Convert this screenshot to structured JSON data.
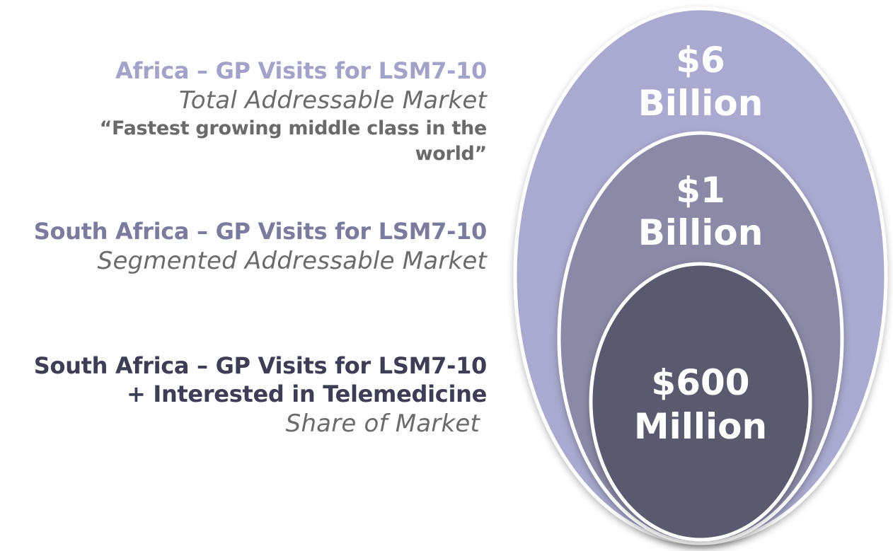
{
  "rings": [
    {
      "title": "Africa – GP Visits for LSM7-10",
      "subtitle": "Total Addressable Market",
      "quote": [
        "“Fastest growing middle class in the",
        "world”"
      ],
      "value_lines": [
        "$6",
        "Billion"
      ],
      "value": 6000000000,
      "fill_color": "#aaaad0",
      "title_color": "#a3a3c9"
    },
    {
      "title": "South Africa – GP Visits for LSM7-10",
      "subtitle": "Segmented Addressable Market",
      "value_lines": [
        "$1",
        "Billion"
      ],
      "value": 1000000000,
      "fill_color": "#8a8aa6",
      "title_color": "#7b7b9e"
    },
    {
      "title_lines": [
        "South Africa – GP Visits for LSM7-10",
        "+ Interested in Telemedicine"
      ],
      "subtitle": "Share of Market",
      "value_lines": [
        "$600",
        "Million"
      ],
      "value": 600000000,
      "fill_color": "#5a5a6e",
      "title_color": "#3d3d55"
    }
  ]
}
